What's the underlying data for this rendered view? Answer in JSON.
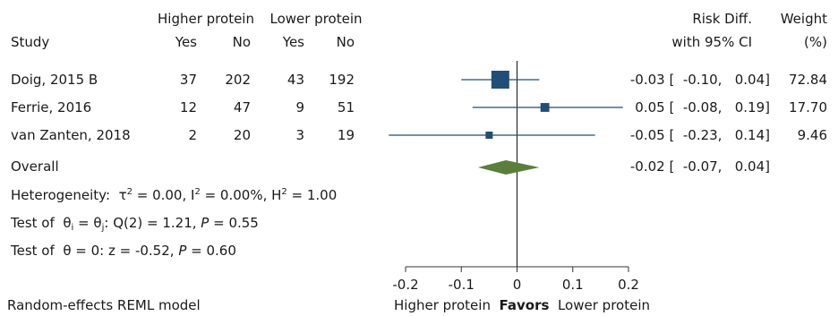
{
  "header": {
    "group1": "Higher protein",
    "group2": "Lower protein",
    "study": "Study",
    "yes": "Yes",
    "no": "No",
    "riskdiff": "Risk Diff.",
    "ci": "with 95% CI",
    "weight": "Weight",
    "weight_unit": "(%)"
  },
  "rows": [
    {
      "study": "Doig, 2015 B",
      "hp_yes": "37",
      "hp_no": "202",
      "lp_yes": "43",
      "lp_no": "192",
      "ci_text": "-0.03 [  -0.10,   0.04]",
      "weight": "72.84"
    },
    {
      "study": "Ferrie, 2016",
      "hp_yes": "12",
      "hp_no": "47",
      "lp_yes": "9",
      "lp_no": "51",
      "ci_text": "0.05 [  -0.08,   0.19]",
      "weight": "17.70"
    },
    {
      "study": "van Zanten, 2018",
      "hp_yes": "2",
      "hp_no": "20",
      "lp_yes": "3",
      "lp_no": "19",
      "ci_text": "-0.05 [  -0.23,   0.14]",
      "weight": "9.46"
    }
  ],
  "overall": {
    "label": "Overall",
    "ci_text": "-0.02 [  -0.07,   0.04]"
  },
  "stats": {
    "het_prefix": "Heterogeneity:",
    "tau_sym": "τ",
    "tau_val": " = 0.00, I",
    "i_val": " = 0.00%, H",
    "h_val": " = 1.00",
    "sup2": "2",
    "test1_prefix": "Test of",
    "theta": "θ",
    "sub_i": "i",
    "sub_j": "j",
    "test1_mid": "Q(2) = 1.21,",
    "p": "P",
    "test1_p": " = 0.55",
    "test2_prefix": "Test of",
    "test2_mid": " = 0: z = -0.52,",
    "test2_p": " = 0.60",
    "eq": " = ",
    "semicolon": ";"
  },
  "footer": {
    "model": "Random-effects REML model",
    "favors_left": "Higher protein",
    "favors": "Favors",
    "favors_right": "Lower protein"
  },
  "colors": {
    "marker": "#1f4e79",
    "diamond": "#5a7f3a",
    "axis": "#333333"
  },
  "chart_data": {
    "type": "forest",
    "xlim": [
      -0.2,
      0.2
    ],
    "ticks": [
      -0.2,
      -0.1,
      0,
      0.1,
      0.2
    ],
    "tick_labels": [
      "-0.2",
      "-0.1",
      "0",
      "0.1",
      "0.2"
    ],
    "studies": [
      {
        "name": "Doig, 2015 B",
        "estimate": -0.03,
        "lower": -0.1,
        "upper": 0.04,
        "weight": 72.84
      },
      {
        "name": "Ferrie, 2016",
        "estimate": 0.05,
        "lower": -0.08,
        "upper": 0.19,
        "weight": 17.7
      },
      {
        "name": "van Zanten, 2018",
        "estimate": -0.05,
        "lower": -0.23,
        "upper": 0.14,
        "weight": 9.46
      }
    ],
    "overall": {
      "estimate": -0.02,
      "lower": -0.07,
      "upper": 0.04
    }
  }
}
